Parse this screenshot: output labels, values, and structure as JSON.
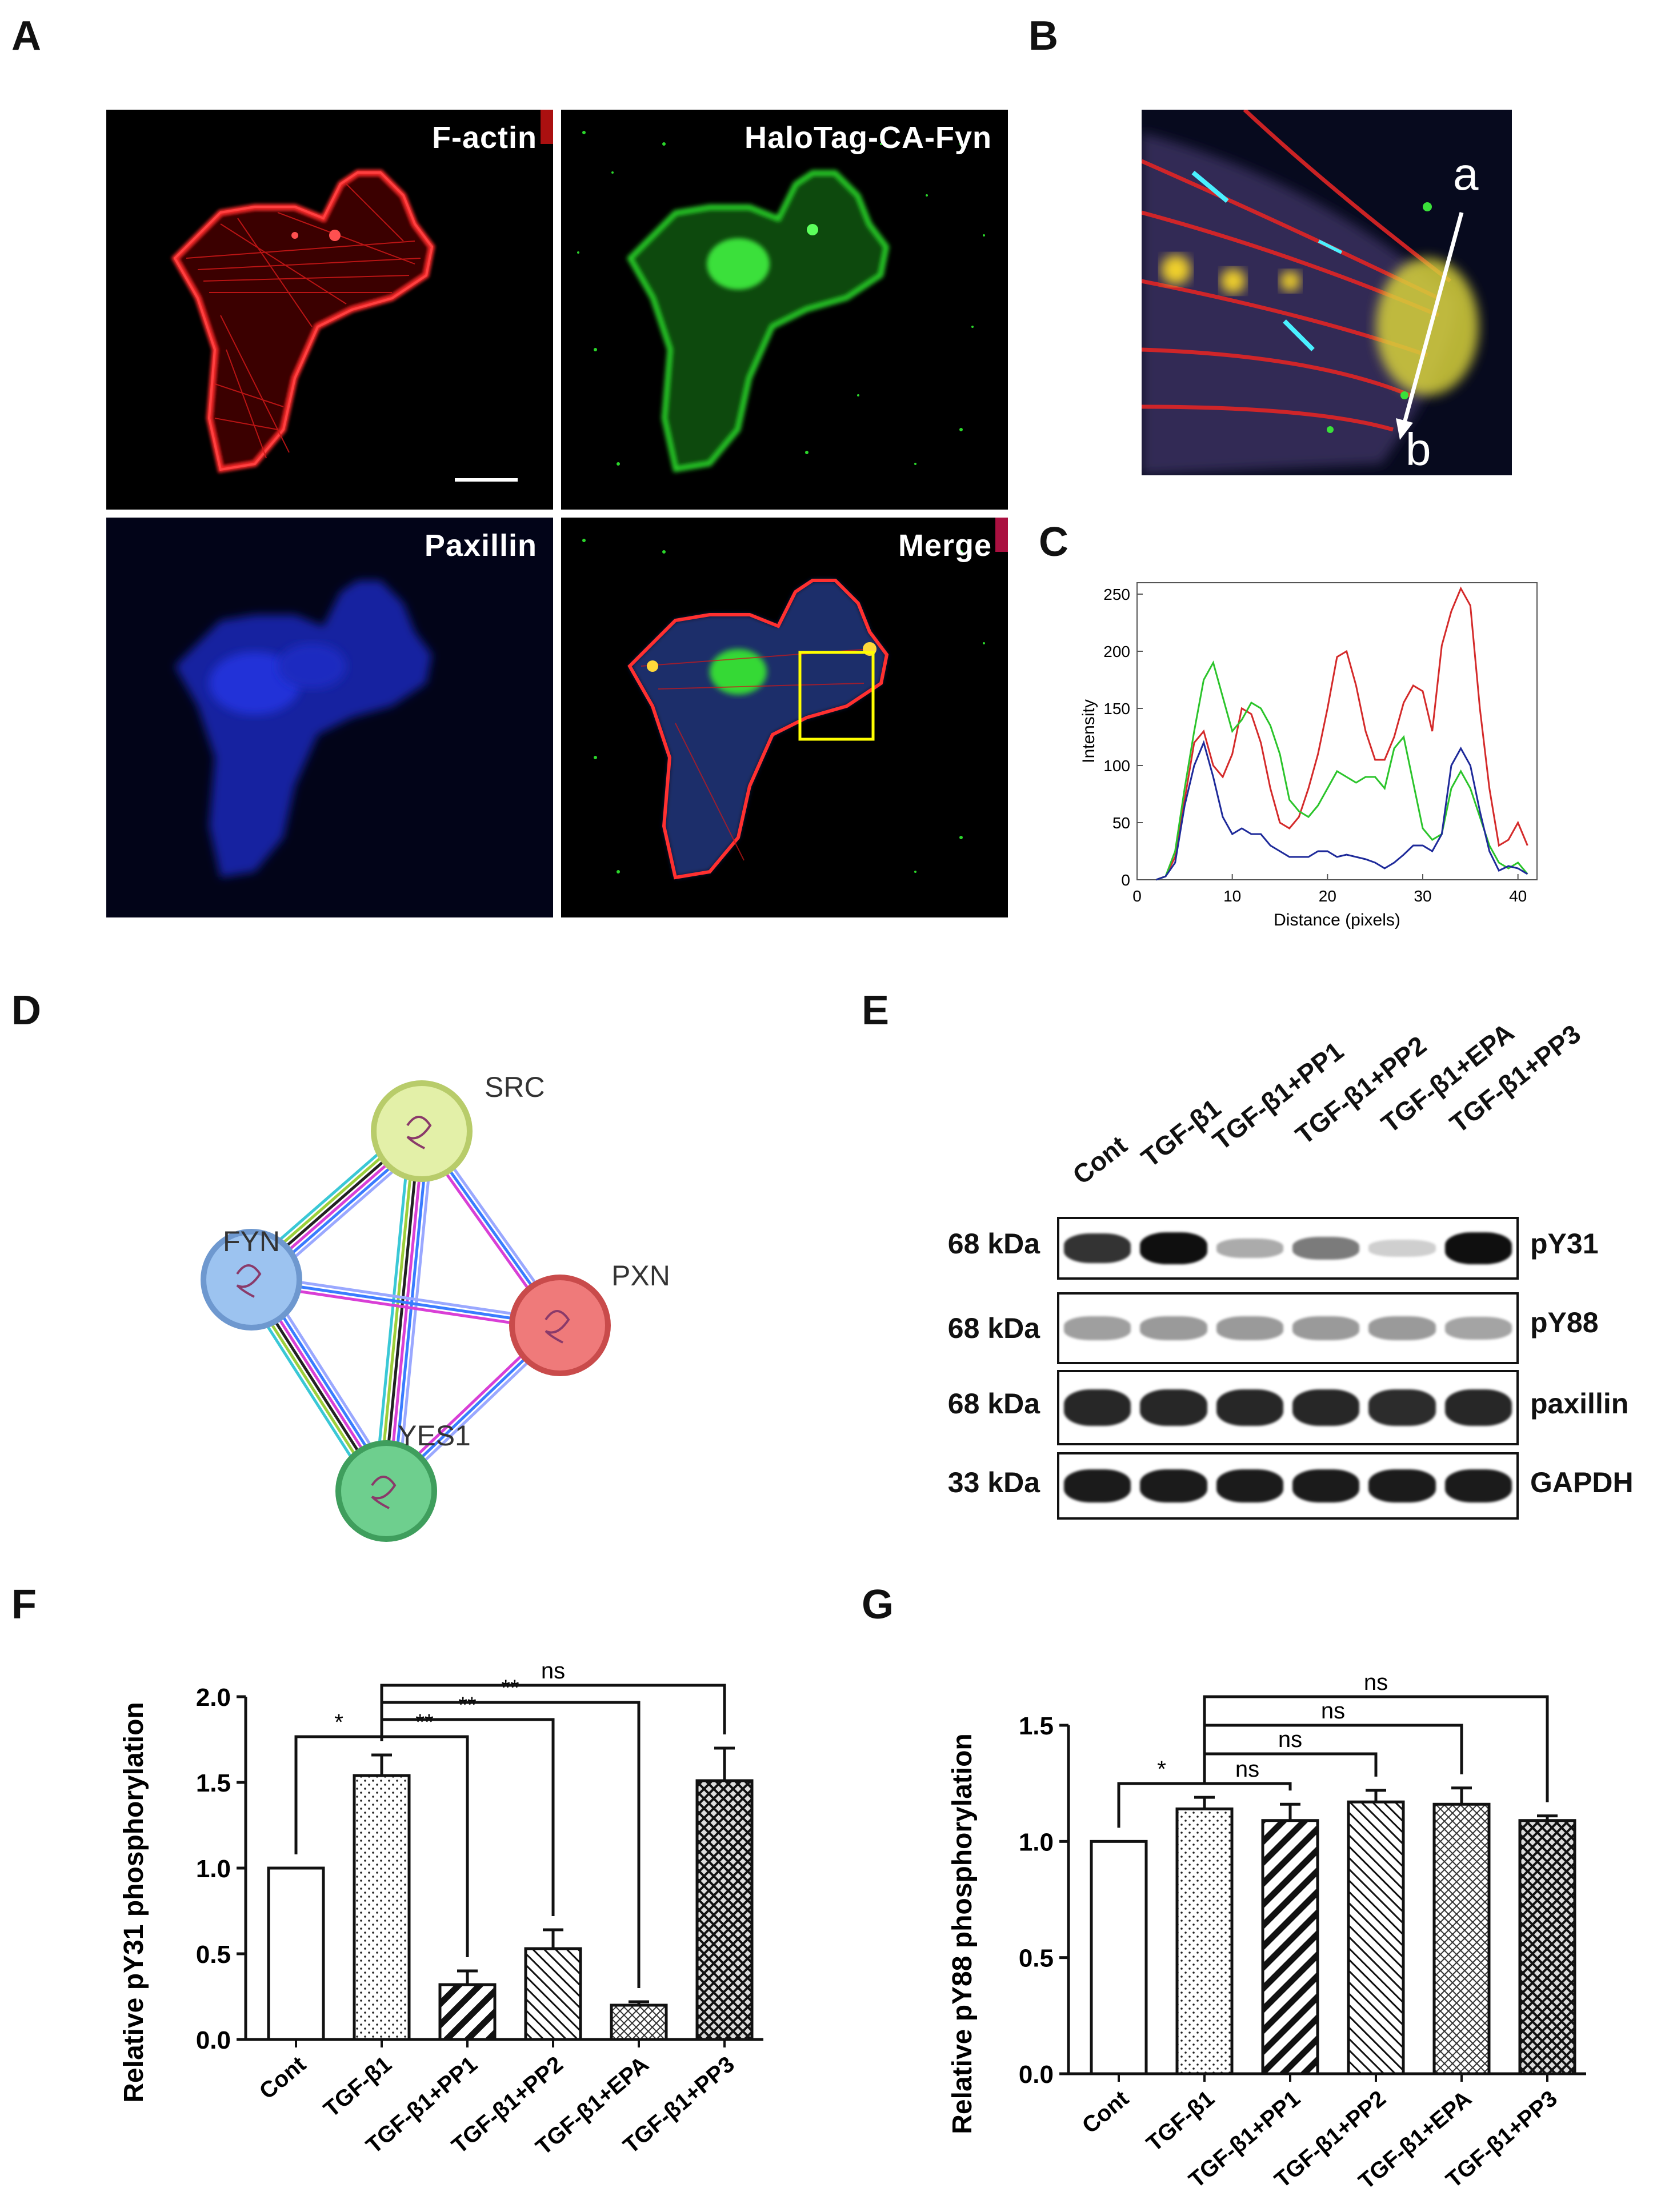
{
  "panel_letters": {
    "A": "A",
    "B": "B",
    "C": "C",
    "D": "D",
    "E": "E",
    "F": "F",
    "G": "G"
  },
  "panel_a": {
    "channels": [
      {
        "label": "F-actin",
        "color": "#ff2a2a"
      },
      {
        "label": "HaloTag-CA-Fyn",
        "color": "#2bd62b"
      },
      {
        "label": "Paxillin",
        "color": "#2a3cff"
      },
      {
        "label": "Merge",
        "color": "#ffffff"
      }
    ],
    "roi_box_color": "#ffff00"
  },
  "panel_b": {
    "start_label": "a",
    "end_label": "b"
  },
  "panel_c": {
    "chart_data": {
      "type": "line",
      "title": "",
      "xlabel": "Distance (pixels)",
      "ylabel": "Intensity",
      "xlim": [
        0,
        42
      ],
      "ylim": [
        0,
        260
      ],
      "xticks": [
        0,
        10,
        20,
        30,
        40
      ],
      "yticks": [
        0,
        50,
        100,
        150,
        200,
        250
      ],
      "x": [
        2,
        3,
        4,
        5,
        6,
        7,
        8,
        9,
        10,
        11,
        12,
        13,
        14,
        15,
        16,
        17,
        18,
        19,
        20,
        21,
        22,
        23,
        24,
        25,
        26,
        27,
        28,
        29,
        30,
        31,
        32,
        33,
        34,
        35,
        36,
        37,
        38,
        39,
        40,
        41
      ],
      "series": [
        {
          "color": "#d42a2a",
          "values": [
            0,
            3,
            20,
            70,
            120,
            130,
            100,
            90,
            110,
            150,
            145,
            120,
            80,
            50,
            45,
            55,
            80,
            110,
            150,
            195,
            200,
            170,
            130,
            105,
            105,
            125,
            155,
            170,
            165,
            130,
            205,
            235,
            255,
            240,
            150,
            80,
            30,
            35,
            50,
            30
          ]
        },
        {
          "color": "#2bc42b",
          "values": [
            0,
            3,
            25,
            80,
            130,
            175,
            190,
            160,
            130,
            140,
            155,
            150,
            135,
            110,
            70,
            60,
            55,
            65,
            80,
            95,
            90,
            85,
            90,
            90,
            80,
            115,
            125,
            85,
            45,
            35,
            40,
            80,
            95,
            80,
            55,
            30,
            15,
            10,
            15,
            5
          ]
        },
        {
          "color": "#1e2a9a",
          "values": [
            0,
            3,
            15,
            65,
            100,
            120,
            90,
            55,
            40,
            45,
            40,
            40,
            30,
            25,
            20,
            20,
            20,
            25,
            25,
            20,
            22,
            20,
            18,
            15,
            10,
            15,
            22,
            30,
            30,
            25,
            40,
            100,
            115,
            100,
            60,
            25,
            8,
            12,
            10,
            5
          ]
        }
      ]
    }
  },
  "panel_d": {
    "nodes": [
      {
        "name": "SRC",
        "fill": "#e3f0a8",
        "stroke": "#b8cc6a"
      },
      {
        "name": "FYN",
        "fill": "#9cc3f0",
        "stroke": "#6e98cf"
      },
      {
        "name": "PXN",
        "fill": "#ef7a7a",
        "stroke": "#c94b4b"
      },
      {
        "name": "YES1",
        "fill": "#6ecf8e",
        "stroke": "#3f9e5d"
      }
    ],
    "edge_colors": [
      "#9aa8ff",
      "#3a7cff",
      "#d93fd6",
      "#222222",
      "#9ccf3a",
      "#3ac8d6"
    ]
  },
  "panel_e": {
    "lanes": [
      "Cont",
      "TGF-β1",
      "TGF-β1+PP1",
      "TGF-β1+PP2",
      "TGF-β1+EPA",
      "TGF-β1+PP3"
    ],
    "rows": [
      {
        "kda": "68 kDa",
        "name": "pY31",
        "intensity": [
          0.85,
          1.0,
          0.35,
          0.55,
          0.2,
          1.0
        ]
      },
      {
        "kda": "68 kDa",
        "name": "pY88",
        "intensity": [
          0.4,
          0.42,
          0.42,
          0.42,
          0.42,
          0.38
        ]
      },
      {
        "kda": "68 kDa",
        "name": "paxillin",
        "intensity": [
          0.9,
          0.9,
          0.9,
          0.9,
          0.88,
          0.9
        ]
      },
      {
        "kda": "33 kDa",
        "name": "GAPDH",
        "intensity": [
          0.95,
          0.95,
          0.95,
          0.95,
          0.95,
          0.95
        ]
      }
    ]
  },
  "panel_f": {
    "chart_data": {
      "type": "bar",
      "title": "",
      "xlabel": "",
      "ylabel": "Relative pY31 phosphorylation",
      "ylim": [
        0,
        2.0
      ],
      "yticks": [
        "0.0",
        "0.5",
        "1.0",
        "1.5",
        "2.0"
      ],
      "categories": [
        "Cont",
        "TGF-β1",
        "TGF-β1+PP1",
        "TGF-β1+PP2",
        "TGF-β1+EPA",
        "TGF-β1+PP3"
      ],
      "values": [
        1.0,
        1.54,
        0.32,
        0.53,
        0.2,
        1.51
      ],
      "errors": [
        0,
        0.12,
        0.08,
        0.11,
        0.02,
        0.19
      ],
      "patterns": [
        "none",
        "dots",
        "thick-diag",
        "thin-diag",
        "fine-cross",
        "cross"
      ],
      "comparisons": [
        {
          "from": 0,
          "to": 1,
          "label": "*"
        },
        {
          "from": 1,
          "to": 2,
          "label": "**"
        },
        {
          "from": 1,
          "to": 3,
          "label": "**"
        },
        {
          "from": 1,
          "to": 4,
          "label": "**"
        },
        {
          "from": 1,
          "to": 5,
          "label": "ns"
        }
      ]
    }
  },
  "panel_g": {
    "chart_data": {
      "type": "bar",
      "title": "",
      "xlabel": "",
      "ylabel": "Relative pY88 phosphorylation",
      "ylim": [
        0,
        1.5
      ],
      "yticks": [
        "0.0",
        "0.5",
        "1.0",
        "1.5"
      ],
      "categories": [
        "Cont",
        "TGF-β1",
        "TGF-β1+PP1",
        "TGF-β1+PP2",
        "TGF-β1+EPA",
        "TGF-β1+PP3"
      ],
      "values": [
        1.0,
        1.14,
        1.09,
        1.17,
        1.16,
        1.09
      ],
      "errors": [
        0,
        0.05,
        0.07,
        0.05,
        0.07,
        0.02
      ],
      "patterns": [
        "none",
        "dots",
        "thick-diag",
        "thin-diag",
        "fine-cross",
        "cross"
      ],
      "comparisons": [
        {
          "from": 0,
          "to": 1,
          "label": "*"
        },
        {
          "from": 1,
          "to": 2,
          "label": "ns"
        },
        {
          "from": 1,
          "to": 3,
          "label": "ns"
        },
        {
          "from": 1,
          "to": 4,
          "label": "ns"
        },
        {
          "from": 1,
          "to": 5,
          "label": "ns"
        }
      ]
    }
  }
}
